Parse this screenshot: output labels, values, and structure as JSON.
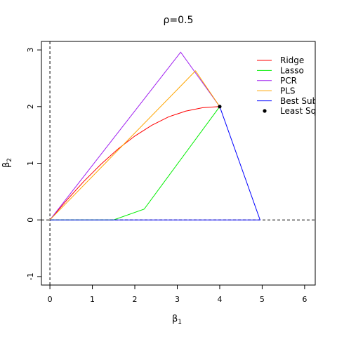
{
  "chart_data": {
    "type": "line",
    "title": "ρ=0.5",
    "xlabel": "β",
    "xlabel_sub": "1",
    "ylabel": "β",
    "ylabel_sub": "2",
    "xlim": [
      -0.2,
      6.25
    ],
    "ylim": [
      -1.15,
      3.15
    ],
    "xticks": [
      0,
      1,
      2,
      3,
      4,
      5,
      6
    ],
    "yticks": [
      -1,
      0,
      1,
      2,
      3
    ],
    "reference_lines": {
      "x": 0,
      "y": 0,
      "style": "dashed"
    },
    "legend_position": "top-right",
    "series": [
      {
        "name": "Ridge",
        "color": "#ff0000",
        "x": [
          0,
          0.4,
          0.8,
          1.2,
          1.6,
          2.0,
          2.4,
          2.8,
          3.2,
          3.6,
          4.0
        ],
        "y": [
          0,
          0.35,
          0.68,
          0.98,
          1.25,
          1.48,
          1.67,
          1.82,
          1.92,
          1.98,
          2.0
        ]
      },
      {
        "name": "Lasso",
        "color": "#00ee00",
        "x": [
          0,
          1.5,
          2.22,
          4.0
        ],
        "y": [
          0,
          0,
          0.19,
          2.0
        ]
      },
      {
        "name": "PCR",
        "color": "#a020f0",
        "x": [
          0,
          3.08,
          4.0
        ],
        "y": [
          0,
          2.96,
          2.0
        ]
      },
      {
        "name": "PLS",
        "color": "#ffa500",
        "x": [
          0,
          3.43,
          4.0
        ],
        "y": [
          0,
          2.63,
          2.0
        ]
      },
      {
        "name": "Best Subset",
        "color": "#0000ff",
        "x": [
          0,
          4.95,
          4.0
        ],
        "y": [
          0,
          0,
          2.0
        ]
      }
    ],
    "points": [
      {
        "name": "Least Squares",
        "x": 4.0,
        "y": 2.0,
        "color": "#000000"
      }
    ]
  }
}
